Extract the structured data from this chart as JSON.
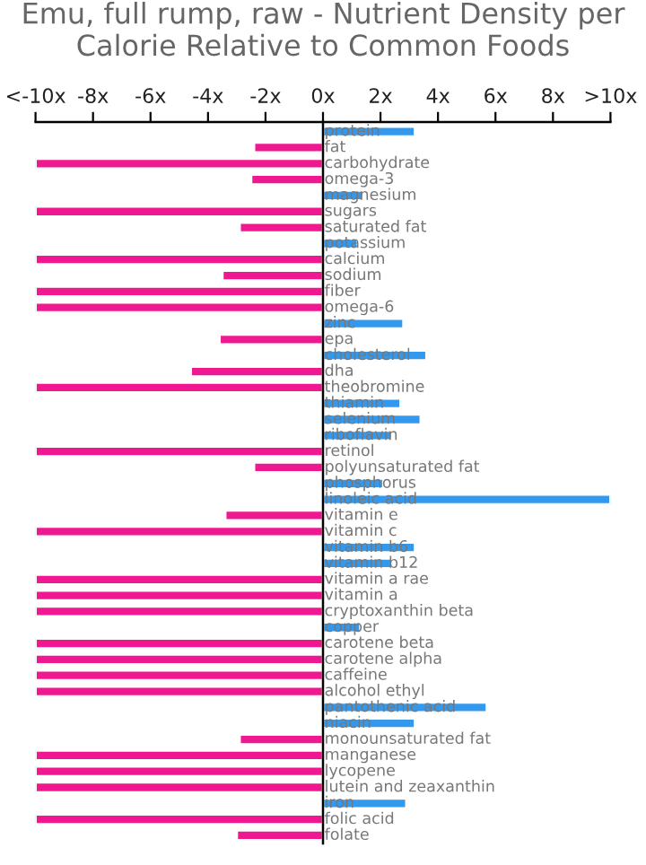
{
  "chart_data": {
    "type": "bar",
    "orientation": "horizontal",
    "title": "Emu, full rump, raw - Nutrient Density per Calorie Relative to Common Foods",
    "categories": [
      "protein",
      "fat",
      "carbohydrate",
      "omega-3",
      "magnesium",
      "sugars",
      "saturated fat",
      "potassium",
      "calcium",
      "sodium",
      "fiber",
      "omega-6",
      "zinc",
      "epa",
      "cholesterol",
      "dha",
      "theobromine",
      "thiamin",
      "selenium",
      "riboflavin",
      "retinol",
      "polyunsaturated fat",
      "phosphorus",
      "linoleic acid",
      "vitamin e",
      "vitamin c",
      "vitamin b6",
      "vitamin b12",
      "vitamin a rae",
      "vitamin a",
      "cryptoxanthin beta",
      "copper",
      "carotene beta",
      "carotene alpha",
      "caffeine",
      "alcohol ethyl",
      "pantothenic acid",
      "niacin",
      "monounsaturated fat",
      "manganese",
      "lycopene",
      "lutein and zeaxanthin",
      "iron",
      "folic acid",
      "folate"
    ],
    "values": [
      3.2,
      -2.4,
      -10,
      -2.5,
      1.4,
      -10,
      -2.9,
      1.2,
      -10,
      -3.5,
      -10,
      -10,
      2.8,
      -3.6,
      3.6,
      -4.6,
      -10,
      2.7,
      3.4,
      2.4,
      -10,
      -2.4,
      2.1,
      10,
      -3.4,
      -10,
      3.2,
      2.4,
      -10,
      -10,
      -10,
      1.3,
      -10,
      -10,
      -10,
      -10,
      5.7,
      3.2,
      -2.9,
      -10,
      -10,
      -10,
      2.9,
      -10,
      -3.0
    ],
    "colors": [
      "#3399ee",
      "#f01890",
      "#f01890",
      "#f01890",
      "#3399ee",
      "#f01890",
      "#f01890",
      "#3399ee",
      "#f01890",
      "#f01890",
      "#f01890",
      "#f01890",
      "#3399ee",
      "#f01890",
      "#3399ee",
      "#f01890",
      "#f01890",
      "#3399ee",
      "#3399ee",
      "#3399ee",
      "#f01890",
      "#f01890",
      "#3399ee",
      "#3399ee",
      "#f01890",
      "#f01890",
      "#3399ee",
      "#3399ee",
      "#f01890",
      "#f01890",
      "#f01890",
      "#3399ee",
      "#f01890",
      "#f01890",
      "#f01890",
      "#f01890",
      "#3399ee",
      "#3399ee",
      "#f01890",
      "#f01890",
      "#f01890",
      "#f01890",
      "#3399ee",
      "#f01890",
      "#f01890"
    ],
    "xlim": [
      -10,
      10
    ],
    "xticks": [
      {
        "value": -10,
        "label": "<-10x"
      },
      {
        "value": -8,
        "label": "-8x"
      },
      {
        "value": -6,
        "label": "-6x"
      },
      {
        "value": -4,
        "label": "-4x"
      },
      {
        "value": -2,
        "label": "-2x"
      },
      {
        "value": 0,
        "label": "0x"
      },
      {
        "value": 2,
        "label": "2x"
      },
      {
        "value": 4,
        "label": "4x"
      },
      {
        "value": 6,
        "label": "6x"
      },
      {
        "value": 8,
        "label": "8x"
      },
      {
        "value": 10,
        "label": ">10x"
      }
    ],
    "grid": false,
    "legend": false
  }
}
